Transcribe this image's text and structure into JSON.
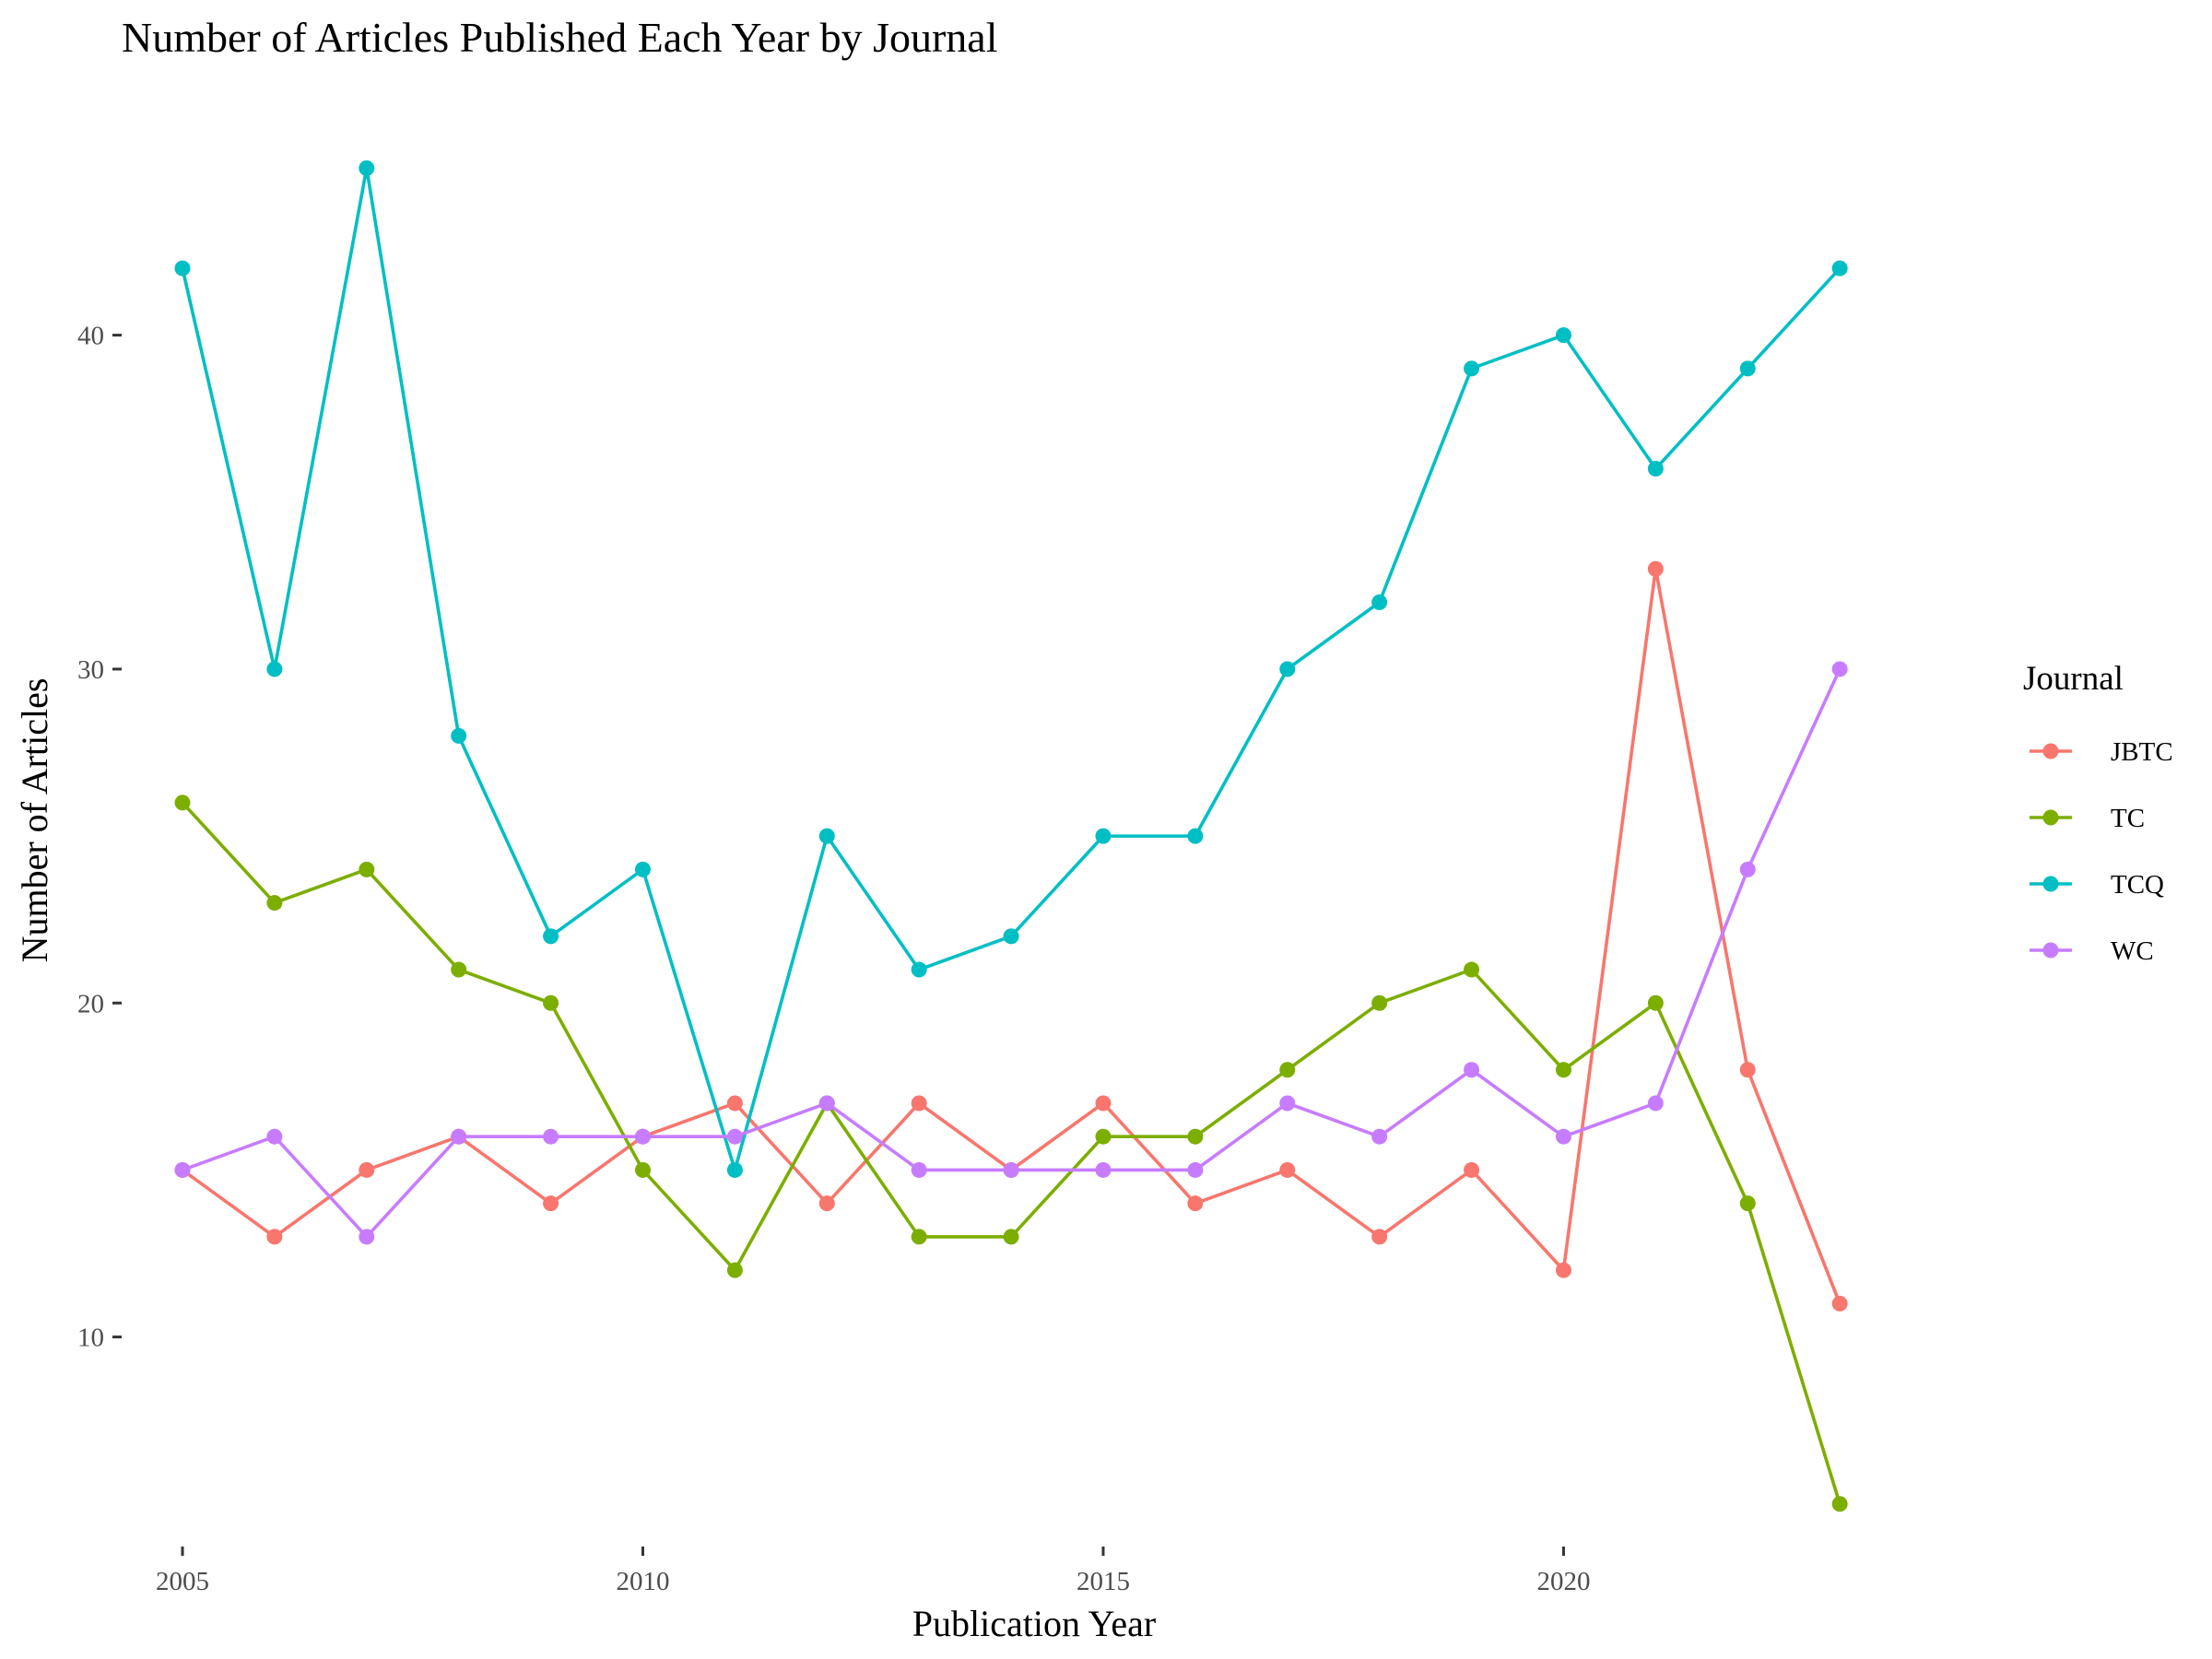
{
  "chart_data": {
    "type": "line",
    "title": "Number of Articles Published Each Year by Journal",
    "xlabel": "Publication Year",
    "ylabel": "Number of Articles",
    "x": [
      2005,
      2006,
      2007,
      2008,
      2009,
      2010,
      2011,
      2012,
      2013,
      2014,
      2015,
      2016,
      2017,
      2018,
      2019,
      2020,
      2021,
      2022,
      2023
    ],
    "xlim": [
      2004.8,
      2024.6
    ],
    "ylim": [
      4.0,
      47.0
    ],
    "x_ticks": [
      2005,
      2010,
      2015,
      2020
    ],
    "x_tick_labels": [
      "2005",
      "2010",
      "2015",
      "2020"
    ],
    "y_ticks": [
      10,
      20,
      30,
      40
    ],
    "y_tick_labels": [
      "10",
      "20",
      "30",
      "40"
    ],
    "grid": false,
    "legend": {
      "title": "Journal",
      "position": "right"
    },
    "series": [
      {
        "name": "JBTC",
        "color": "#F8766D",
        "values": [
          15,
          13,
          15,
          16,
          14,
          16,
          17,
          14,
          17,
          15,
          17,
          14,
          15,
          13,
          15,
          12,
          33,
          18,
          11
        ]
      },
      {
        "name": "TC",
        "color": "#7CAE00",
        "values": [
          26,
          23,
          24,
          21,
          20,
          15,
          12,
          17,
          13,
          13,
          16,
          16,
          18,
          20,
          21,
          18,
          20,
          14,
          5
        ]
      },
      {
        "name": "TCQ",
        "color": "#00BFC4",
        "values": [
          42,
          30,
          45,
          28,
          22,
          24,
          15,
          25,
          21,
          22,
          25,
          25,
          30,
          32,
          39,
          40,
          36,
          39,
          42
        ]
      },
      {
        "name": "WC",
        "color": "#C77CFF",
        "values": [
          15,
          16,
          13,
          16,
          16,
          16,
          16,
          17,
          15,
          15,
          15,
          15,
          17,
          16,
          18,
          16,
          17,
          24,
          30
        ]
      }
    ]
  }
}
